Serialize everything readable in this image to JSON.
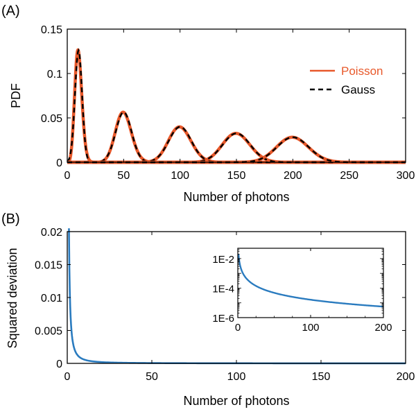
{
  "chart_data": [
    {
      "panel_label": "(A)",
      "type": "line",
      "xlabel": "Number of photons",
      "ylabel": "PDF",
      "xlim": [
        0,
        300
      ],
      "ylim": [
        0,
        0.15
      ],
      "x_ticks": [
        0,
        50,
        100,
        150,
        200,
        250,
        300
      ],
      "y_ticks": [
        0,
        0.05,
        0.1,
        0.15
      ],
      "x_tick_labels": [
        "0",
        "50",
        "100",
        "150",
        "200",
        "250",
        "300"
      ],
      "y_tick_labels": [
        "0",
        "0.05",
        "0.1",
        "0.15"
      ],
      "means": [
        10,
        50,
        100,
        150,
        200
      ],
      "legend_position": "top-right",
      "series": [
        {
          "name": "Poisson",
          "color": "#e8582a",
          "style": "solid"
        },
        {
          "name": "Gauss",
          "color": "#000000",
          "style": "dashed"
        }
      ]
    },
    {
      "panel_label": "(B)",
      "type": "line",
      "xlabel": "Number of photons",
      "ylabel": "Squared deviation",
      "xlim": [
        0,
        200
      ],
      "ylim": [
        0,
        0.02
      ],
      "x_ticks": [
        0,
        50,
        100,
        150,
        200
      ],
      "y_ticks": [
        0,
        0.005,
        0.01,
        0.015,
        0.02
      ],
      "x_tick_labels": [
        "0",
        "50",
        "100",
        "150",
        "200"
      ],
      "y_tick_labels": [
        "0",
        "0.005",
        "0.01",
        "0.015",
        "0.02"
      ],
      "series": [
        {
          "name": "Squared deviation",
          "color": "#2a7bbf"
        }
      ],
      "inset": {
        "type": "line",
        "y_scale": "log",
        "xlim": [
          0,
          200
        ],
        "ylim": [
          1e-06,
          0.05
        ],
        "x_ticks": [
          0,
          100,
          200
        ],
        "x_tick_labels": [
          "0",
          "100",
          "200"
        ],
        "y_ticks": [
          1e-06,
          0.0001,
          0.01
        ],
        "y_tick_labels": [
          "1E-6",
          "1E-4",
          "1E-2"
        ]
      }
    }
  ]
}
